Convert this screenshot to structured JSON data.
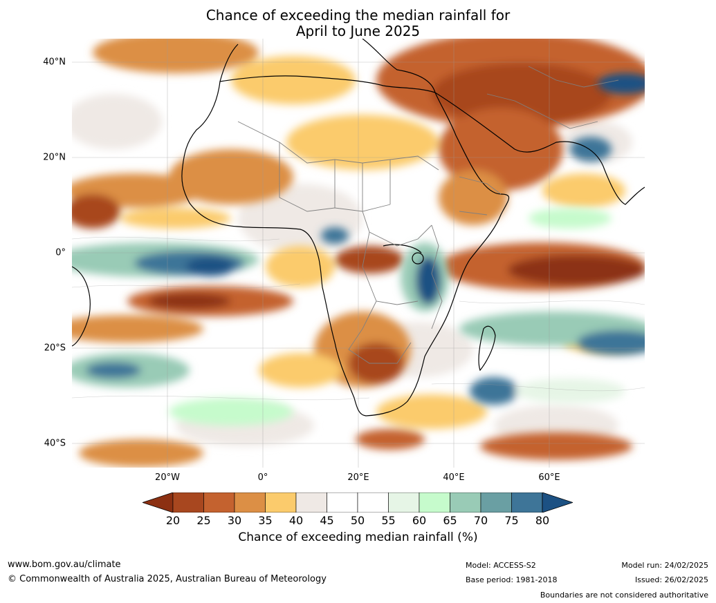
{
  "title_line1": "Chance of exceeding the median rainfall for",
  "title_line2": "April to June 2025",
  "lat_labels": [
    "40°N",
    "20°N",
    "0°",
    "20°S",
    "40°S"
  ],
  "lon_labels": [
    "20°W",
    "0°",
    "20°E",
    "40°E",
    "60°E"
  ],
  "colorbar": {
    "ticks": [
      "20",
      "25",
      "30",
      "35",
      "40",
      "45",
      "50",
      "55",
      "60",
      "65",
      "70",
      "75",
      "80"
    ],
    "colors": [
      "#8c3012",
      "#a8471f",
      "#c4622f",
      "#dc8f45",
      "#fbcb6c",
      "#efe9e5",
      "#ffffff",
      "#ffffff",
      "#e6f5e6",
      "#c6fbcc",
      "#99cbb6",
      "#6a9fa3",
      "#3e7598",
      "#1c5183"
    ],
    "label": "Chance of exceeding median rainfall (%)"
  },
  "footer": {
    "url": "www.bom.gov.au/climate",
    "copyright": "© Commonwealth of Australia 2025, Australian Bureau of Meteorology",
    "model": "Model: ACCESS-S2",
    "base_period": "Base period: 1981-2018",
    "model_run": "Model run: 24/02/2025",
    "issued": "Issued: 26/02/2025",
    "disclaimer": "Boundaries are not considered authoritative"
  }
}
